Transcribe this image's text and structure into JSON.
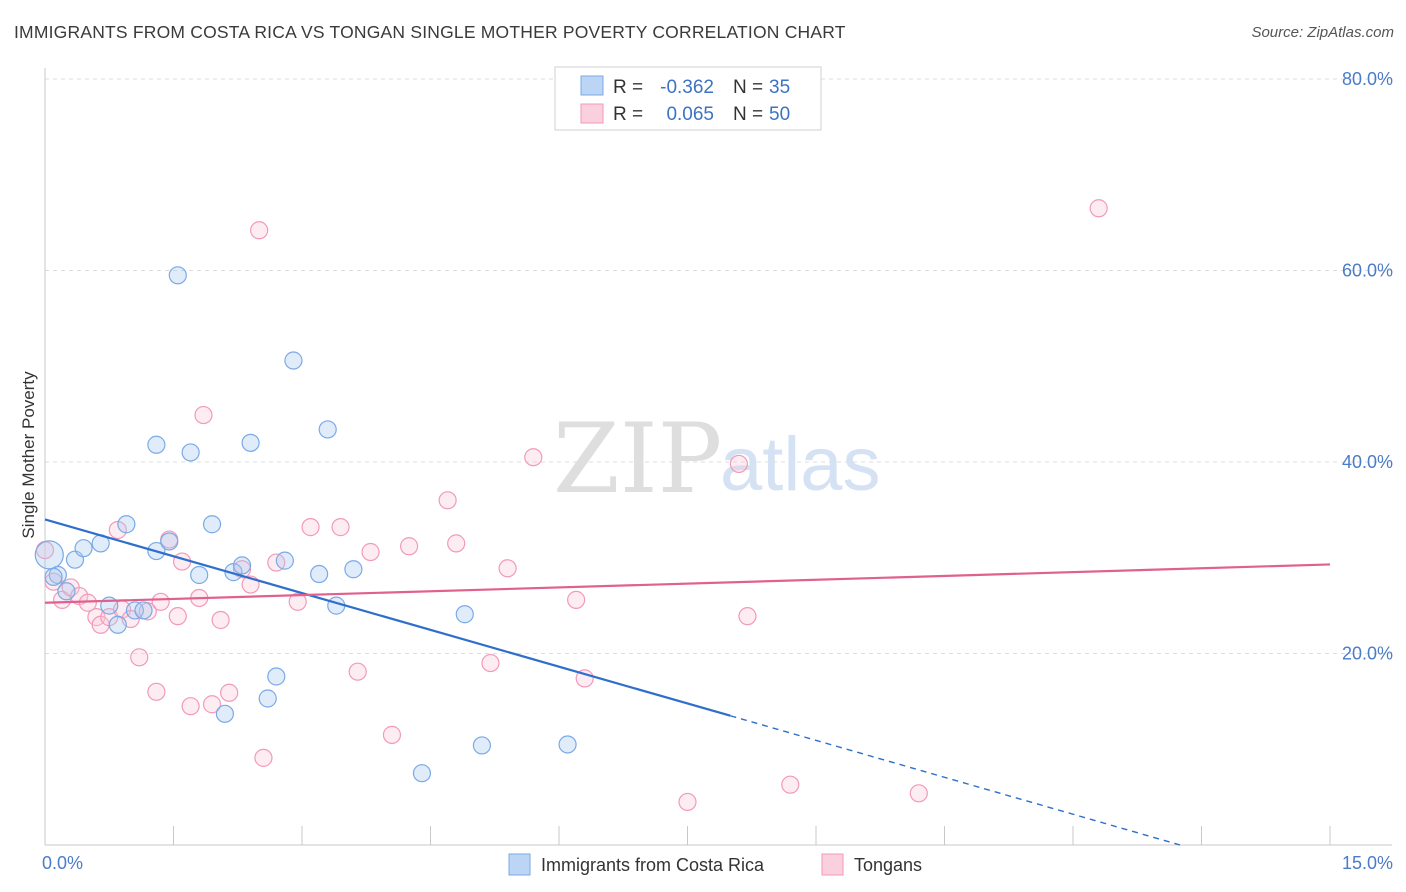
{
  "header": {
    "title": "IMMIGRANTS FROM COSTA RICA VS TONGAN SINGLE MOTHER POVERTY CORRELATION CHART",
    "source": "Source: ZipAtlas.com"
  },
  "watermark": {
    "zip": "ZIP",
    "atlas": "atlas"
  },
  "legend": {
    "r_label": "R =",
    "n_label": "N =",
    "rows": [
      {
        "r": "-0.362",
        "n": "35"
      },
      {
        "r": "0.065",
        "n": "50"
      }
    ]
  },
  "chart_data": {
    "type": "scatter",
    "title": "IMMIGRANTS FROM COSTA RICA VS TONGAN SINGLE MOTHER POVERTY CORRELATION CHART",
    "xlabel": "",
    "ylabel": "Single Mother Poverty",
    "xlim": [
      0,
      15
    ],
    "ylim": [
      0,
      80
    ],
    "x_tick_labels": [
      "0.0%",
      "15.0%"
    ],
    "y_tick_labels": [
      "20.0%",
      "40.0%",
      "60.0%",
      "80.0%"
    ],
    "y_ticks": [
      20,
      40,
      60,
      80
    ],
    "grid": true,
    "legend_position": "bottom",
    "colors": {
      "costa_rica": "#7aaae6",
      "tongans": "#f29ab7",
      "costa_rica_line": "#2f6fcc",
      "tongans_line": "#e0608f"
    },
    "series": [
      {
        "name": "Immigrants from Costa Rica",
        "r": -0.362,
        "n": 35,
        "trend": {
          "x0": 0,
          "y0": 34.0,
          "x1": 8.0,
          "y1": 13.5,
          "dashed_to_x": 15,
          "dashed_to_y": -4.5
        },
        "points": [
          [
            0.05,
            30.3
          ],
          [
            0.15,
            28.2
          ],
          [
            0.25,
            26.5
          ],
          [
            0.35,
            29.8
          ],
          [
            0.45,
            31.0
          ],
          [
            0.65,
            31.5
          ],
          [
            0.75,
            25.0
          ],
          [
            0.85,
            23.0
          ],
          [
            0.95,
            33.5
          ],
          [
            1.05,
            24.5
          ],
          [
            1.15,
            24.5
          ],
          [
            1.3,
            30.7
          ],
          [
            1.45,
            31.7
          ],
          [
            1.3,
            41.8
          ],
          [
            1.55,
            59.5
          ],
          [
            1.7,
            41.0
          ],
          [
            1.8,
            28.2
          ],
          [
            1.95,
            33.5
          ],
          [
            2.1,
            13.7
          ],
          [
            2.2,
            28.5
          ],
          [
            2.3,
            29.2
          ],
          [
            2.4,
            42.0
          ],
          [
            2.6,
            15.3
          ],
          [
            2.7,
            17.6
          ],
          [
            2.8,
            29.7
          ],
          [
            2.9,
            50.6
          ],
          [
            3.2,
            28.3
          ],
          [
            3.3,
            43.4
          ],
          [
            3.4,
            25.0
          ],
          [
            3.6,
            28.8
          ],
          [
            4.4,
            7.5
          ],
          [
            4.9,
            24.1
          ],
          [
            5.1,
            10.4
          ],
          [
            6.1,
            10.5
          ],
          [
            0.1,
            28.0
          ]
        ]
      },
      {
        "name": "Tongans",
        "r": 0.065,
        "n": 50,
        "trend": {
          "x0": 0,
          "y0": 25.3,
          "x1": 15,
          "y1": 29.3
        },
        "points": [
          [
            0.0,
            30.8
          ],
          [
            0.1,
            27.5
          ],
          [
            0.2,
            25.6
          ],
          [
            0.3,
            26.9
          ],
          [
            0.4,
            26.0
          ],
          [
            0.5,
            25.3
          ],
          [
            0.6,
            23.8
          ],
          [
            0.65,
            23.0
          ],
          [
            0.75,
            23.8
          ],
          [
            0.85,
            32.9
          ],
          [
            0.9,
            24.6
          ],
          [
            1.0,
            23.6
          ],
          [
            1.1,
            19.6
          ],
          [
            1.2,
            24.4
          ],
          [
            1.3,
            16.0
          ],
          [
            1.35,
            25.4
          ],
          [
            1.45,
            31.9
          ],
          [
            1.55,
            23.9
          ],
          [
            1.6,
            29.6
          ],
          [
            1.7,
            14.5
          ],
          [
            1.8,
            25.8
          ],
          [
            1.85,
            44.9
          ],
          [
            1.95,
            14.7
          ],
          [
            2.05,
            23.5
          ],
          [
            2.15,
            15.9
          ],
          [
            2.3,
            28.8
          ],
          [
            2.4,
            27.2
          ],
          [
            2.5,
            64.2
          ],
          [
            2.55,
            9.1
          ],
          [
            2.7,
            29.5
          ],
          [
            2.95,
            25.4
          ],
          [
            3.1,
            33.2
          ],
          [
            3.45,
            33.2
          ],
          [
            3.65,
            18.1
          ],
          [
            3.8,
            30.6
          ],
          [
            4.05,
            11.5
          ],
          [
            4.25,
            31.2
          ],
          [
            4.7,
            36.0
          ],
          [
            4.8,
            31.5
          ],
          [
            5.2,
            19.0
          ],
          [
            5.4,
            28.9
          ],
          [
            5.7,
            40.5
          ],
          [
            6.2,
            25.6
          ],
          [
            6.3,
            17.4
          ],
          [
            7.5,
            4.5
          ],
          [
            8.1,
            39.8
          ],
          [
            8.2,
            23.9
          ],
          [
            8.7,
            6.3
          ],
          [
            10.2,
            5.4
          ],
          [
            12.3,
            66.5
          ]
        ]
      }
    ]
  },
  "bottom_legend": {
    "items": [
      {
        "label": "Immigrants from Costa Rica"
      },
      {
        "label": "Tongans"
      }
    ]
  }
}
